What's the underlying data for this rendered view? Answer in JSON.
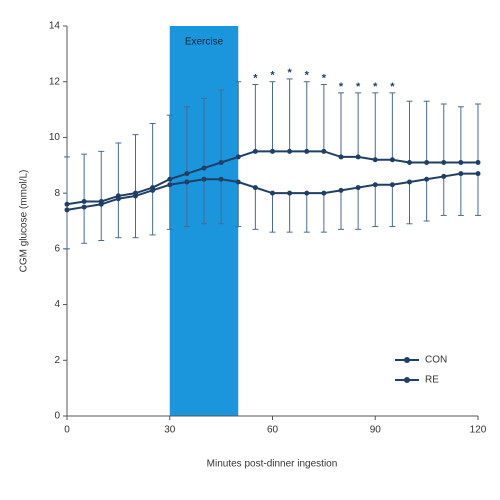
{
  "chart_data": {
    "type": "line",
    "x_label": "Minutes post-dinner ingestion",
    "y_label": "CGM glucose (mmol/L)",
    "x": [
      0,
      5,
      10,
      15,
      20,
      25,
      30,
      35,
      40,
      45,
      50,
      55,
      60,
      65,
      70,
      75,
      80,
      85,
      90,
      95,
      100,
      105,
      110,
      115,
      120
    ],
    "xlim": [
      0,
      120
    ],
    "xticks": [
      0,
      30,
      60,
      90,
      120
    ],
    "ylim": [
      0,
      14
    ],
    "yticks": [
      0,
      2,
      4,
      6,
      8,
      10,
      12,
      14
    ],
    "shaded_region": {
      "xlim": [
        30,
        50
      ],
      "label": "Exercise",
      "color": "#1b96dc"
    },
    "significance": {
      "x": [
        55,
        60,
        65,
        70,
        75,
        80,
        85,
        90,
        95
      ],
      "label": "*"
    },
    "legend": "bottom-right",
    "series": [
      {
        "name": "CON",
        "color": "#1f3f66",
        "error_direction": "up",
        "values": [
          7.6,
          7.7,
          7.7,
          7.9,
          8.0,
          8.2,
          8.5,
          8.7,
          8.9,
          9.1,
          9.3,
          9.5,
          9.5,
          9.5,
          9.5,
          9.5,
          9.3,
          9.3,
          9.2,
          9.2,
          9.1,
          9.1,
          9.1,
          9.1,
          9.1
        ],
        "errors": [
          1.7,
          1.7,
          1.8,
          1.9,
          2.1,
          2.3,
          2.3,
          2.4,
          2.5,
          2.6,
          2.7,
          2.4,
          2.5,
          2.6,
          2.5,
          2.4,
          2.3,
          2.3,
          2.4,
          2.4,
          2.2,
          2.2,
          2.1,
          2.0,
          2.1
        ]
      },
      {
        "name": "RE",
        "color": "#1f3f66",
        "error_direction": "down",
        "values": [
          7.4,
          7.5,
          7.6,
          7.8,
          7.9,
          8.1,
          8.3,
          8.4,
          8.5,
          8.5,
          8.4,
          8.2,
          8.0,
          8.0,
          8.0,
          8.0,
          8.1,
          8.2,
          8.3,
          8.3,
          8.4,
          8.5,
          8.6,
          8.7,
          8.7
        ],
        "errors": [
          1.4,
          1.3,
          1.3,
          1.4,
          1.5,
          1.6,
          1.6,
          1.6,
          1.6,
          1.6,
          1.6,
          1.5,
          1.4,
          1.4,
          1.4,
          1.4,
          1.4,
          1.5,
          1.5,
          1.5,
          1.5,
          1.5,
          1.4,
          1.5,
          1.5
        ]
      }
    ]
  }
}
